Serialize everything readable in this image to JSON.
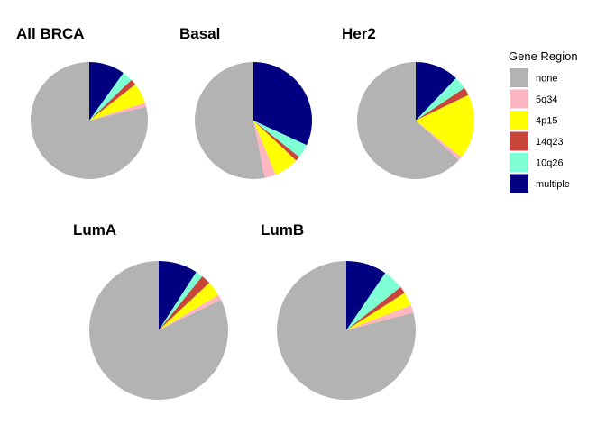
{
  "chart_data": [
    {
      "type": "pie",
      "title": "All BRCA",
      "categories": [
        "none",
        "5q34",
        "4p15",
        "14q23",
        "10q26",
        "multiple"
      ],
      "values": [
        78.8,
        1.1,
        5.7,
        1.6,
        2.9,
        9.9
      ]
    },
    {
      "type": "pie",
      "title": "Basal",
      "categories": [
        "none",
        "5q34",
        "4p15",
        "14q23",
        "10q26",
        "multiple"
      ],
      "values": [
        53.1,
        3.1,
        6.8,
        1.3,
        3.8,
        31.9
      ]
    },
    {
      "type": "pie",
      "title": "Her2",
      "categories": [
        "none",
        "5q34",
        "4p15",
        "14q23",
        "10q26",
        "multiple"
      ],
      "values": [
        63.2,
        1.0,
        18.0,
        2.2,
        3.5,
        12.1
      ]
    },
    {
      "type": "pie",
      "title": "LumA",
      "categories": [
        "none",
        "5q34",
        "4p15",
        "14q23",
        "10q26",
        "multiple"
      ],
      "values": [
        82.3,
        1.2,
        3.5,
        2.2,
        1.7,
        9.1
      ]
    },
    {
      "type": "pie",
      "title": "LumB",
      "categories": [
        "none",
        "5q34",
        "4p15",
        "14q23",
        "10q26",
        "multiple"
      ],
      "values": [
        79.1,
        1.8,
        3.2,
        1.6,
        4.8,
        9.5
      ]
    }
  ],
  "legend": {
    "title": "Gene Region",
    "placement": "right",
    "items": [
      {
        "label": "none",
        "color": "#b3b3b3"
      },
      {
        "label": "5q34",
        "color": "#ffb6c1"
      },
      {
        "label": "4p15",
        "color": "#ffff00"
      },
      {
        "label": "14q23",
        "color": "#c9453a"
      },
      {
        "label": "10q26",
        "color": "#7fffd4"
      },
      {
        "label": "multiple",
        "color": "#000080"
      }
    ]
  }
}
